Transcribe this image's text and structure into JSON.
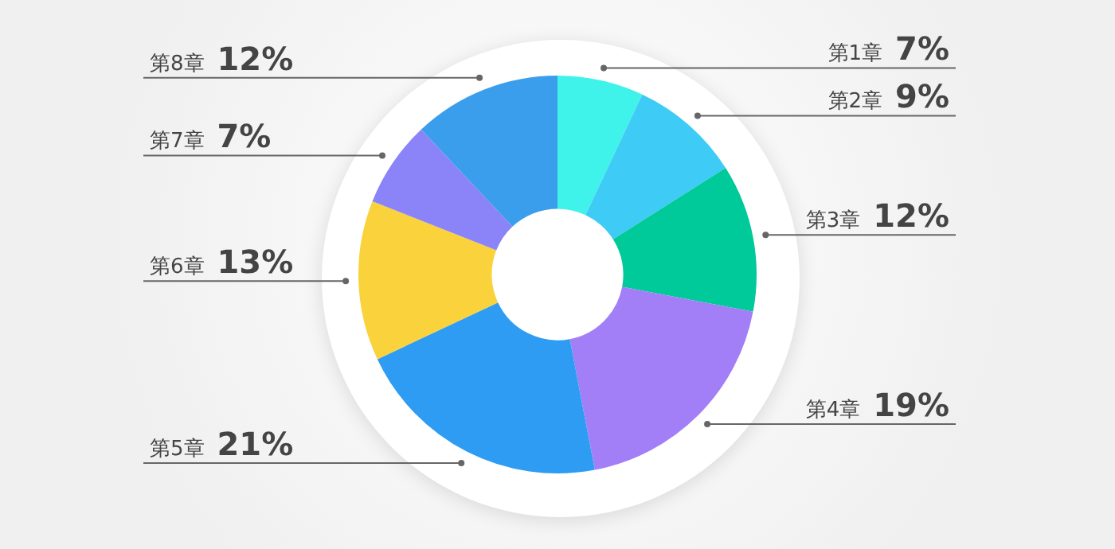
{
  "chart_data": {
    "type": "donut",
    "categories": [
      "第1章",
      "第2章",
      "第3章",
      "第4章",
      "第5章",
      "第6章",
      "第7章",
      "第8章"
    ],
    "values": [
      7,
      9,
      12,
      19,
      21,
      13,
      7,
      12
    ],
    "value_labels": [
      "7%",
      "9%",
      "12%",
      "19%",
      "21%",
      "13%",
      "7%",
      "12%"
    ],
    "colors": [
      "#3ff3ea",
      "#3ecbf5",
      "#00c99a",
      "#a27ff6",
      "#2e9cf2",
      "#f9d23c",
      "#8a84f8",
      "#3b9eec"
    ],
    "legend": false
  }
}
